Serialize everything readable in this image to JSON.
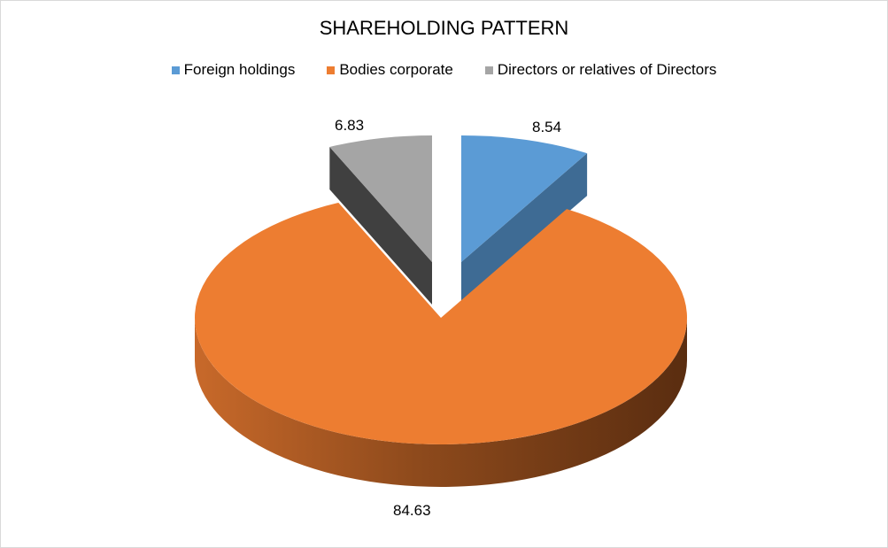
{
  "chart_data": {
    "type": "pie",
    "title": "SHAREHOLDING PATTERN",
    "legend_position": "top",
    "categories": [
      "Foreign holdings",
      "Bodies corporate",
      "Directors or relatives of Directors"
    ],
    "values": [
      8.54,
      84.63,
      6.83
    ],
    "data_labels": [
      "8.54",
      "84.63",
      "6.83"
    ],
    "colors": [
      "#5b9bd5",
      "#ed7d31",
      "#a5a5a5"
    ],
    "side_colors": [
      "#3e6b94",
      "#8a4a1c",
      "#404040"
    ]
  }
}
